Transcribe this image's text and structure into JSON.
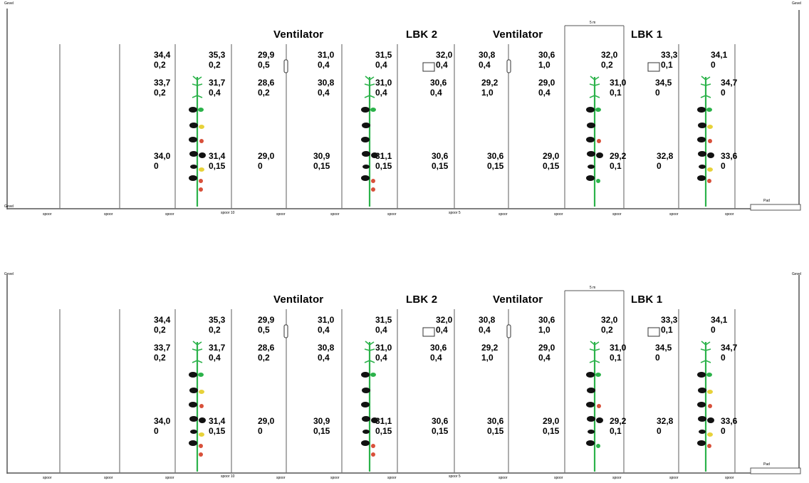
{
  "labels": {
    "wall": "Gevel",
    "fan": "Ventilator",
    "lbk1": "LBK 1",
    "lbk2": "LBK 2",
    "span": "5 m",
    "path": "Pad"
  },
  "floor_labels": [
    "spoor",
    "spoor",
    "spoor",
    "spoor 10",
    "spoor",
    "spoor",
    "spoor",
    "spoor 5",
    "spoor",
    "spoor",
    "spoor",
    "spoor",
    "spoor"
  ],
  "floor_labels_bottom": [
    "spoor",
    "spoor",
    "spoor",
    "spoor 10",
    "spoor",
    "spoor",
    "spoor",
    "spoor 5",
    "spoor",
    "spoor",
    "spoor",
    "spoor",
    "spoor"
  ],
  "row1_temp": [
    "34,4",
    "35,3",
    "29,9",
    "31,0",
    "31,5",
    "32,0",
    "30,8",
    "30,6",
    "32,0",
    "33,3",
    "34,1"
  ],
  "row1_air": [
    "0,2",
    "0,2",
    "0,5",
    "0,4",
    "0,4",
    "0,4",
    "0,4",
    "1,0",
    "0,2",
    "0,1",
    "0"
  ],
  "row2_temp": [
    "33,7",
    "31,7",
    "28,6",
    "30,8",
    "31,0",
    "30,6",
    "29,2",
    "29,0",
    "31,0",
    "34,5",
    "34,7"
  ],
  "row2_air": [
    "0,2",
    "0,4",
    "0,2",
    "0,4",
    "0,4",
    "0,4",
    "1,0",
    "0,4",
    "0,1",
    "0",
    "0"
  ],
  "row3_temp": [
    "34,0",
    "31,4",
    "29,0",
    "30,9",
    "31,1",
    "30,6",
    "30,6",
    "29,0",
    "29,2",
    "32,8",
    "33,6"
  ],
  "row3_air": [
    "0",
    "0,15",
    "0",
    "0,15",
    "0,15",
    "0,15",
    "0,15",
    "0,15",
    "0,1",
    "0",
    "0"
  ],
  "colors": {
    "stem": "#2bb24a",
    "leaf_dark": "#111111",
    "fruit_yellow": "#e7d23a",
    "fruit_red": "#d8503a",
    "line": "#555555"
  }
}
